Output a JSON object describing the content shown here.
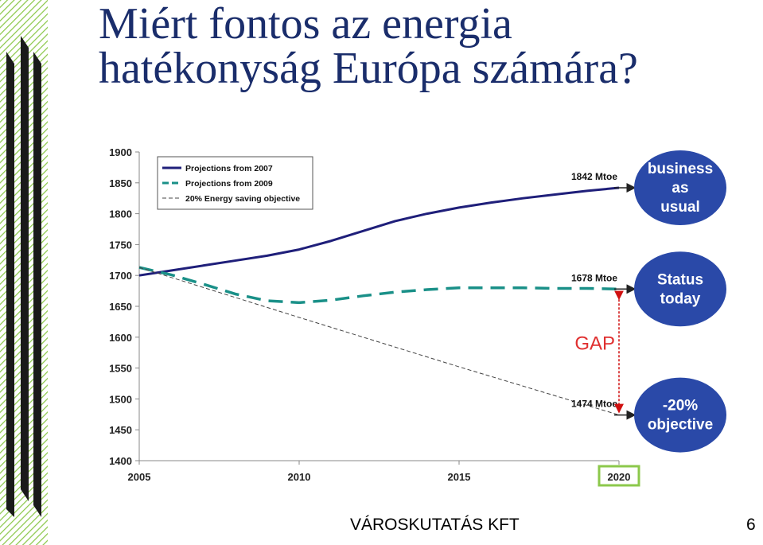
{
  "slide": {
    "title_line1": "Miért fontos az energia",
    "title_line2": "hatékonyság Európa számára?",
    "footer": "VÁROSKUTATÁS KFT",
    "page_number": "6"
  },
  "chart_data": {
    "type": "line",
    "title": "",
    "xlabel": "",
    "ylabel": "",
    "xlim": [
      2005,
      2020
    ],
    "ylim": [
      1400,
      1900
    ],
    "x_ticks": [
      "2005",
      "2010",
      "2015",
      "2020"
    ],
    "y_ticks": [
      "1400",
      "1450",
      "1500",
      "1550",
      "1600",
      "1650",
      "1700",
      "1750",
      "1800",
      "1850",
      "1900"
    ],
    "highlighted_tick": "2020",
    "legend_position": "top-left",
    "series": [
      {
        "name": "Projections from 2007",
        "style": "solid",
        "color": "#1f1f7a",
        "x": [
          2005,
          2006,
          2007,
          2008,
          2009,
          2010,
          2011,
          2012,
          2013,
          2014,
          2015,
          2016,
          2017,
          2018,
          2019,
          2020
        ],
        "y": [
          1700,
          1708,
          1716,
          1724,
          1732,
          1742,
          1756,
          1772,
          1788,
          1800,
          1810,
          1818,
          1825,
          1831,
          1837,
          1842
        ]
      },
      {
        "name": "Projections from 2009",
        "style": "dashed",
        "color": "#1a9088",
        "x": [
          2005,
          2006,
          2007,
          2008,
          2009,
          2010,
          2011,
          2012,
          2013,
          2014,
          2015,
          2016,
          2017,
          2018,
          2019,
          2020
        ],
        "y": [
          1713,
          1701,
          1686,
          1670,
          1659,
          1656,
          1660,
          1667,
          1673,
          1677,
          1680,
          1680,
          1680,
          1679,
          1679,
          1678
        ]
      },
      {
        "name": "20% Energy saving objective",
        "style": "dashed-thin",
        "color": "#444444",
        "x": [
          2005,
          2010,
          2015,
          2020
        ],
        "y": [
          1713,
          1632,
          1552,
          1474
        ]
      }
    ],
    "annotations": [
      {
        "text": "1842 Mtoe",
        "x": 2020,
        "y": 1842
      },
      {
        "text": "1678 Mtoe",
        "x": 2020,
        "y": 1678
      },
      {
        "text": "1474 Mtoe",
        "x": 2020,
        "y": 1474
      },
      {
        "text": "GAP",
        "color": "#e03030"
      }
    ],
    "callouts": [
      {
        "lines": [
          "business",
          "as",
          "usual"
        ],
        "color": "#2a49a8"
      },
      {
        "lines": [
          "Status",
          "today"
        ],
        "color": "#2a49a8"
      },
      {
        "lines": [
          "-20%",
          "objective"
        ],
        "color": "#2a49a8"
      }
    ]
  }
}
